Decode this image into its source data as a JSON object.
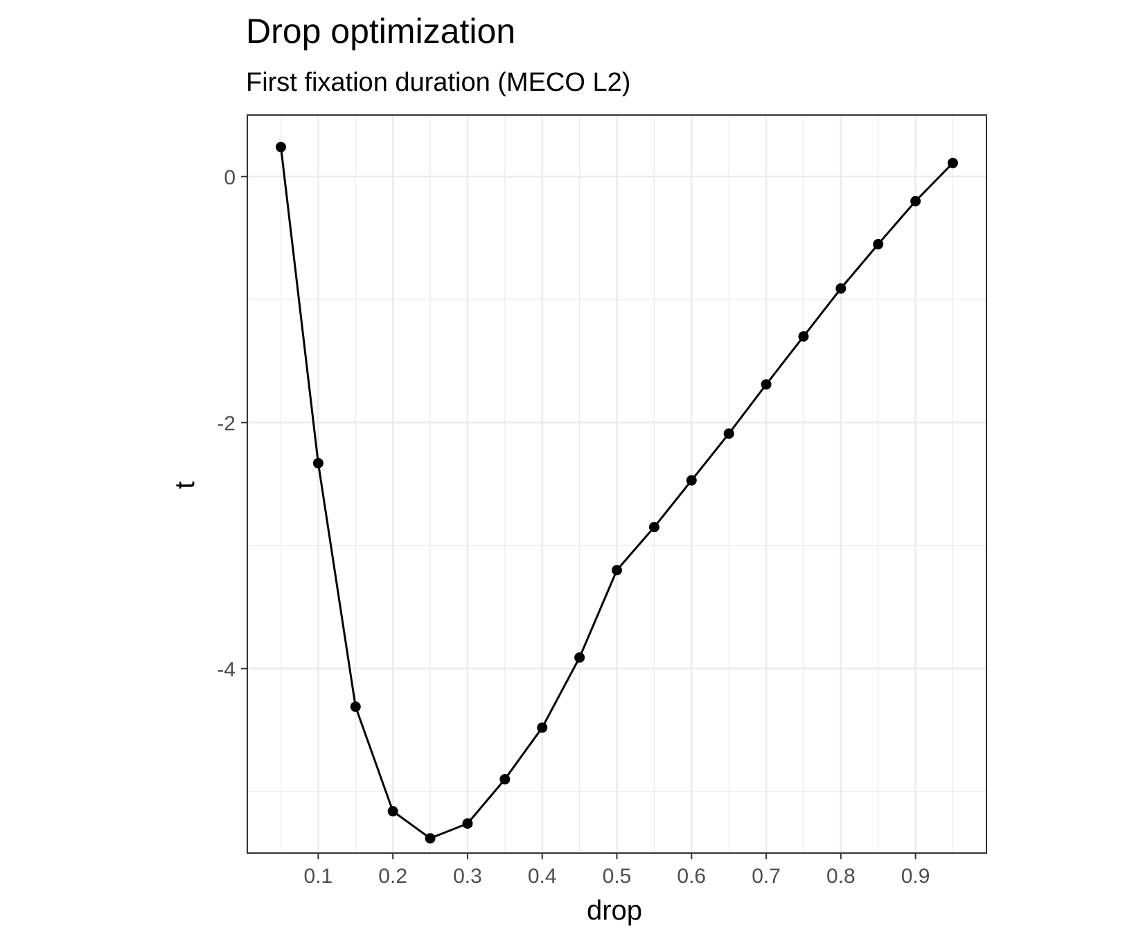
{
  "chart_data": {
    "type": "line",
    "title": "Drop optimization",
    "subtitle": "First fixation duration (MECO L2)",
    "xlabel": "drop",
    "ylabel": "t",
    "xlim": [
      0.005,
      0.995
    ],
    "ylim": [
      -5.5,
      0.5
    ],
    "x_ticks": [
      0.1,
      0.2,
      0.3,
      0.4,
      0.5,
      0.6,
      0.7,
      0.8,
      0.9
    ],
    "x_tick_labels": [
      "0.1",
      "0.2",
      "0.3",
      "0.4",
      "0.5",
      "0.6",
      "0.7",
      "0.8",
      "0.9"
    ],
    "y_ticks": [
      0,
      -2,
      -4
    ],
    "y_tick_labels": [
      "0",
      "-2",
      "-4"
    ],
    "grid": true,
    "series": [
      {
        "color": "#000000",
        "x": [
          0.05,
          0.1,
          0.15,
          0.2,
          0.25,
          0.3,
          0.35,
          0.4,
          0.45,
          0.5,
          0.55,
          0.6,
          0.65,
          0.7,
          0.75,
          0.8,
          0.85,
          0.9,
          0.95
        ],
        "y": [
          0.24,
          -2.33,
          -4.31,
          -5.16,
          -5.38,
          -5.26,
          -4.9,
          -4.48,
          -3.91,
          -3.2,
          -2.85,
          -2.47,
          -2.09,
          -1.69,
          -1.3,
          -0.91,
          -0.55,
          -0.2,
          0.11
        ]
      }
    ]
  }
}
